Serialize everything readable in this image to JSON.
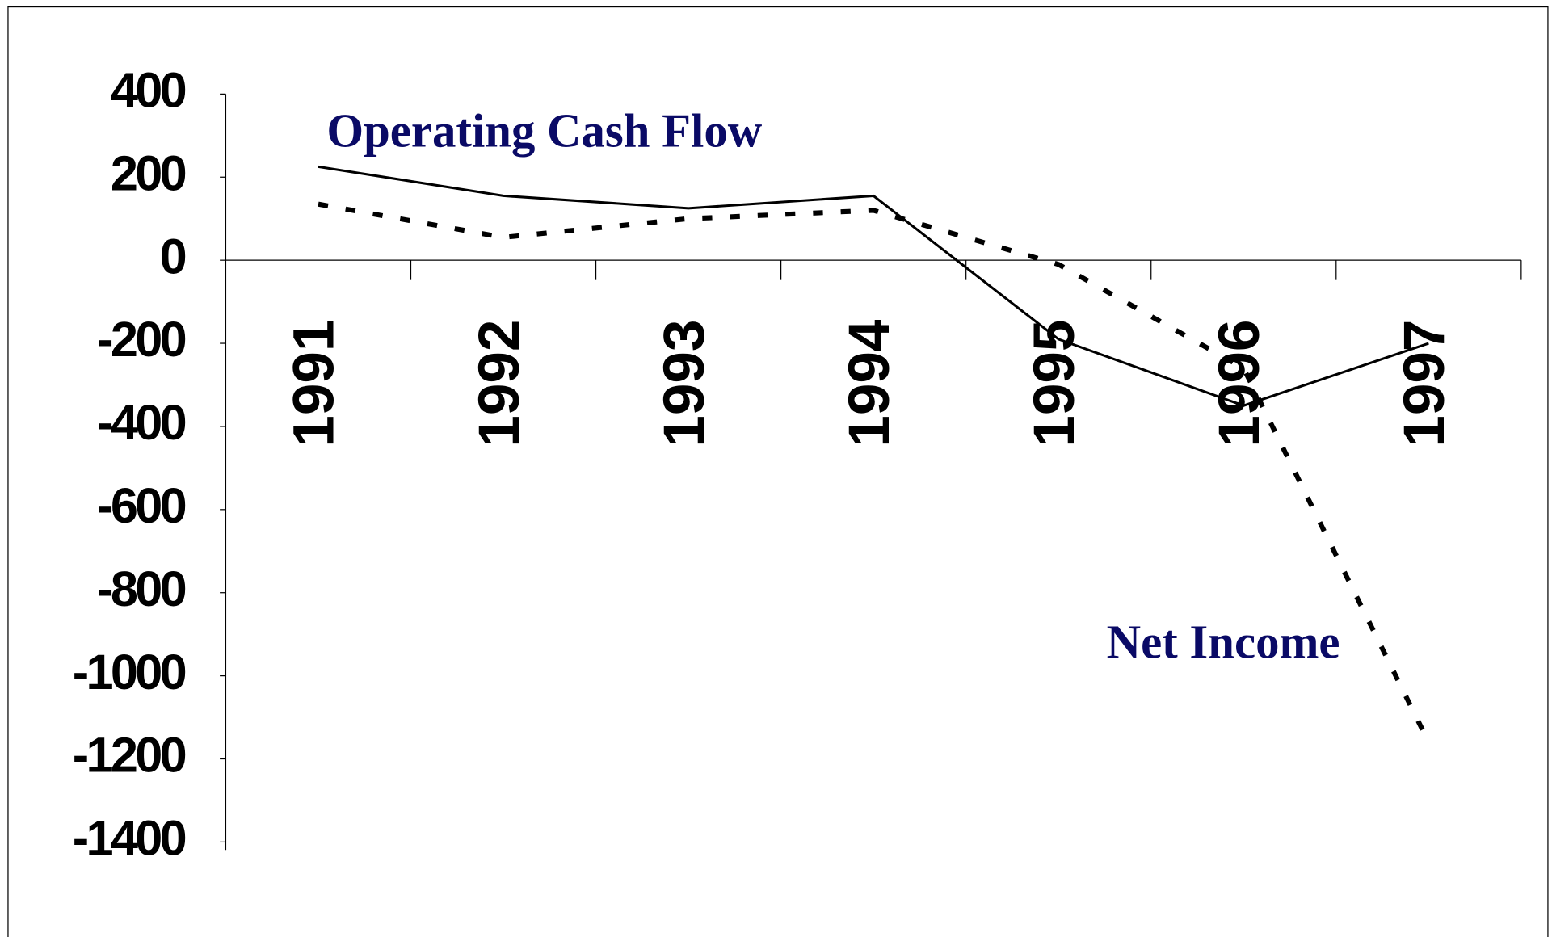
{
  "chart_data": {
    "type": "line",
    "categories": [
      "1991",
      "1992",
      "1993",
      "1994",
      "1995",
      "1996",
      "1997"
    ],
    "series": [
      {
        "name": "Operating Cash Flow",
        "color": "#000000",
        "dash": "solid",
        "values": [
          225,
          155,
          125,
          155,
          -190,
          -350,
          -200
        ]
      },
      {
        "name": "Net Income",
        "color": "#000000",
        "dash": "dotted",
        "values": [
          135,
          55,
          100,
          120,
          -10,
          -260,
          -1160
        ]
      }
    ],
    "ylim": [
      -1400,
      400
    ],
    "yticks": [
      -1400,
      -1200,
      -1000,
      -800,
      -600,
      -400,
      -200,
      0,
      200,
      400
    ],
    "label_color": "#0a0a66",
    "grid": false
  }
}
